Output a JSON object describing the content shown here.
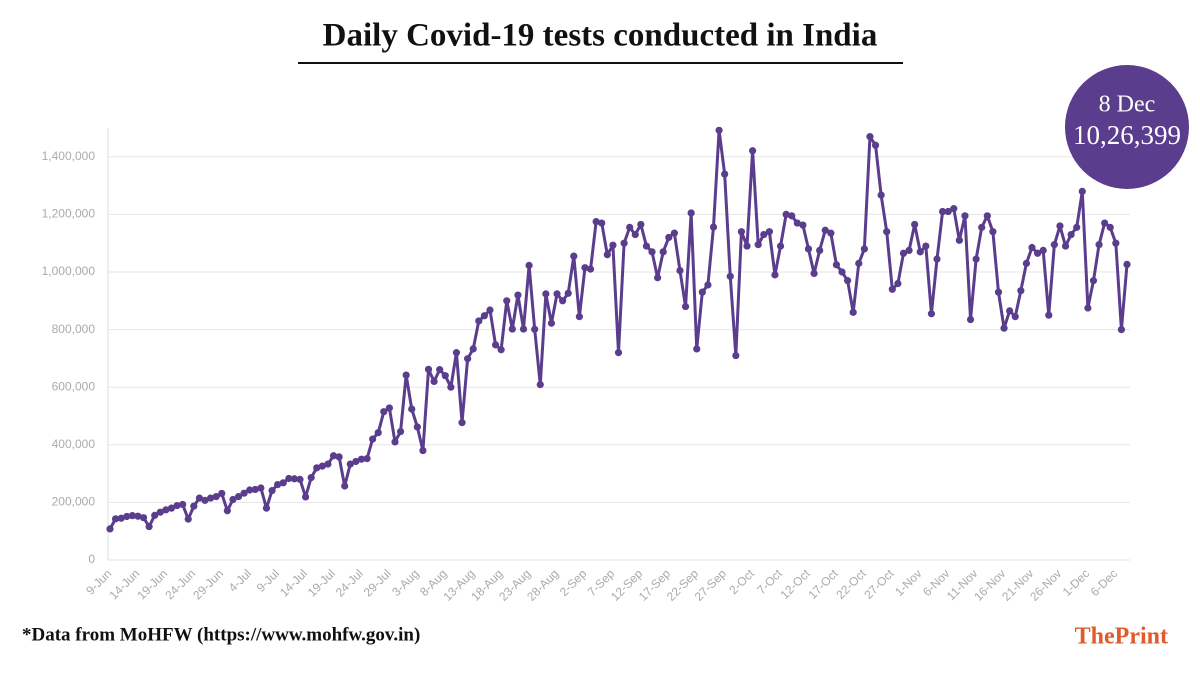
{
  "chart_data": {
    "type": "line",
    "title": "Daily Covid-19 tests conducted in India",
    "categories": [
      "9-Jun",
      null,
      null,
      null,
      null,
      "14-Jun",
      null,
      null,
      null,
      null,
      "19-Jun",
      null,
      null,
      null,
      null,
      "24-Jun",
      null,
      null,
      null,
      null,
      "29-Jun",
      null,
      null,
      null,
      null,
      "4-Jul",
      null,
      null,
      null,
      null,
      "9-Jul",
      null,
      null,
      null,
      null,
      "14-Jul",
      null,
      null,
      null,
      null,
      "19-Jul",
      null,
      null,
      null,
      null,
      "24-Jul",
      null,
      null,
      null,
      null,
      "29-Jul",
      null,
      null,
      null,
      null,
      "3-Aug",
      null,
      null,
      null,
      null,
      "8-Aug",
      null,
      null,
      null,
      null,
      "13-Aug",
      null,
      null,
      null,
      null,
      "18-Aug",
      null,
      null,
      null,
      null,
      "23-Aug",
      null,
      null,
      null,
      null,
      "28-Aug",
      null,
      null,
      null,
      null,
      "2-Sep",
      null,
      null,
      null,
      null,
      "7-Sep",
      null,
      null,
      null,
      null,
      "12-Sep",
      null,
      null,
      null,
      null,
      "17-Sep",
      null,
      null,
      null,
      null,
      "22-Sep",
      null,
      null,
      null,
      null,
      "27-Sep",
      null,
      null,
      null,
      null,
      "2-Oct",
      null,
      null,
      null,
      null,
      "7-Oct",
      null,
      null,
      null,
      null,
      "12-Oct",
      null,
      null,
      null,
      null,
      "17-Oct",
      null,
      null,
      null,
      null,
      "22-Oct",
      null,
      null,
      null,
      null,
      "27-Oct",
      null,
      null,
      null,
      null,
      "1-Nov",
      null,
      null,
      null,
      null,
      "6-Nov",
      null,
      null,
      null,
      null,
      "11-Nov",
      null,
      null,
      null,
      null,
      "16-Nov",
      null,
      null,
      null,
      null,
      "21-Nov",
      null,
      null,
      null,
      null,
      "26-Nov",
      null,
      null,
      null,
      null,
      "1-Dec",
      null,
      null,
      null,
      null,
      "6-Dec",
      null,
      null
    ],
    "series": [
      {
        "color": "#5a3d8c",
        "values": [
          108000,
          143000,
          145000,
          151000,
          154000,
          152000,
          147000,
          116000,
          155000,
          166000,
          174000,
          180000,
          189000,
          193000,
          142000,
          187000,
          215000,
          207000,
          215000,
          220000,
          231000,
          171000,
          210000,
          220000,
          232000,
          243000,
          245000,
          250000,
          180000,
          241000,
          262000,
          268000,
          283000,
          282000,
          280000,
          219000,
          286000,
          320000,
          326000,
          333000,
          362000,
          358000,
          257000,
          333000,
          342000,
          350000,
          352000,
          420000,
          442000,
          515000,
          528000,
          410000,
          446000,
          642000,
          524000,
          462000,
          380000,
          662000,
          620000,
          661000,
          640000,
          600000,
          720000,
          477000,
          699000,
          733000,
          830000,
          848000,
          868000,
          747000,
          730000,
          900000,
          802000,
          920000,
          802000,
          1023000,
          801000,
          609000,
          924000,
          822000,
          924000,
          900000,
          926000,
          1055000,
          845000,
          1015000,
          1010000,
          1175000,
          1170000,
          1060000,
          1093000,
          720000,
          1100000,
          1155000,
          1130000,
          1165000,
          1090000,
          1070000,
          980000,
          1070000,
          1120000,
          1135000,
          1005000,
          880000,
          1205000,
          733000,
          930000,
          955000,
          1156000,
          1492000,
          1340000,
          985000,
          710000,
          1140000,
          1090000,
          1421000,
          1095000,
          1130000,
          1140000,
          990000,
          1090000,
          1200000,
          1195000,
          1170000,
          1163000,
          1080000,
          995000,
          1075000,
          1145000,
          1135000,
          1025000,
          1000000,
          970000,
          860000,
          1030000,
          1080000,
          1470000,
          1440000,
          1267000,
          1140000,
          940000,
          960000,
          1065000,
          1075000,
          1165000,
          1070000,
          1090000,
          855000,
          1045000,
          1210000,
          1210000,
          1220000,
          1110000,
          1195000,
          835000,
          1045000,
          1155000,
          1195000,
          1140000,
          930000,
          805000,
          865000,
          845000,
          935000,
          1030000,
          1085000,
          1065000,
          1075000,
          850000,
          1095000,
          1160000,
          1090000,
          1130000,
          1155000,
          1280000,
          875000,
          970000,
          1095000,
          1170000,
          1155000,
          1100000,
          800000,
          1026399
        ]
      }
    ],
    "ylim": [
      0,
      1500000
    ],
    "yticks": [
      0,
      {
        "value": 200000,
        "label": "200,000"
      },
      {
        "value": 400000,
        "label": "400,000"
      },
      {
        "value": 600000,
        "label": "600,000"
      },
      {
        "value": 800000,
        "label": "800,000"
      },
      {
        "value": 1000000,
        "label": "1,000,000"
      },
      {
        "value": 1200000,
        "label": "1,200,000"
      },
      {
        "value": 1400000,
        "label": "1,400,000"
      }
    ],
    "grid": true,
    "annotation": {
      "date": "8 Dec",
      "value_label": "10,26,399"
    },
    "source": "*Data from MoHFW (https://www.mohfw.gov.in)",
    "brand": "ThePrint"
  }
}
